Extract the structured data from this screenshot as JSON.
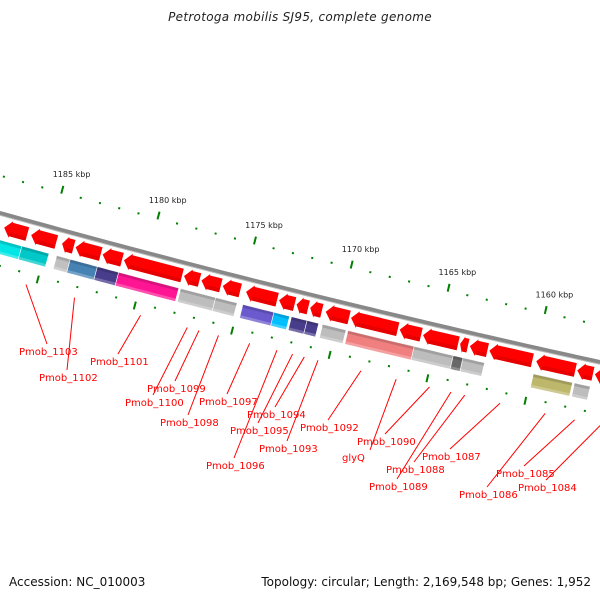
{
  "title": "Petrotoga mobilis SJ95, complete genome",
  "footer": {
    "accession": "Accession: NC_010003",
    "summary": "Topology: circular; Length: 2,169,548 bp; Genes: 1,952"
  },
  "colors": {
    "backbone": "#888888",
    "forward_gene": "#ff0000",
    "tick": "#008000",
    "label": "#ff0000",
    "kbp_text": "#222222"
  },
  "scale": {
    "unit": "kbp",
    "major_ticks_kbp": [
      1185,
      1180,
      1175,
      1170,
      1165,
      1160
    ],
    "minor_tick_step_kbp": 1
  },
  "genes_track": [
    {
      "start_kbp": 1187.3,
      "end_kbp": 1186.1,
      "color": "#ff0000"
    },
    {
      "start_kbp": 1185.9,
      "end_kbp": 1184.6,
      "color": "#ff0000"
    },
    {
      "start_kbp": 1184.3,
      "end_kbp": 1183.7,
      "color": "#ff0000"
    },
    {
      "start_kbp": 1183.6,
      "end_kbp": 1182.3,
      "color": "#ff0000"
    },
    {
      "start_kbp": 1182.2,
      "end_kbp": 1181.2,
      "color": "#ff0000"
    },
    {
      "start_kbp": 1181.1,
      "end_kbp": 1178.1,
      "color": "#ff0000"
    },
    {
      "start_kbp": 1178.0,
      "end_kbp": 1177.2,
      "color": "#ff0000"
    },
    {
      "start_kbp": 1177.1,
      "end_kbp": 1176.1,
      "color": "#ff0000"
    },
    {
      "start_kbp": 1176.0,
      "end_kbp": 1175.1,
      "color": "#ff0000"
    },
    {
      "start_kbp": 1174.8,
      "end_kbp": 1173.2,
      "color": "#ff0000"
    },
    {
      "start_kbp": 1173.1,
      "end_kbp": 1172.3,
      "color": "#ff0000"
    },
    {
      "start_kbp": 1172.2,
      "end_kbp": 1171.6,
      "color": "#ff0000"
    },
    {
      "start_kbp": 1171.5,
      "end_kbp": 1170.9,
      "color": "#ff0000"
    },
    {
      "start_kbp": 1170.7,
      "end_kbp": 1169.5,
      "color": "#ff0000"
    },
    {
      "start_kbp": 1169.4,
      "end_kbp": 1167.0,
      "color": "#ff0000"
    },
    {
      "start_kbp": 1166.9,
      "end_kbp": 1165.8,
      "color": "#ff0000"
    },
    {
      "start_kbp": 1165.7,
      "end_kbp": 1163.9,
      "color": "#ff0000"
    },
    {
      "start_kbp": 1163.8,
      "end_kbp": 1163.4,
      "color": "#ff0000"
    },
    {
      "start_kbp": 1163.3,
      "end_kbp": 1162.4,
      "color": "#ff0000"
    },
    {
      "start_kbp": 1162.3,
      "end_kbp": 1160.1,
      "color": "#ff0000"
    },
    {
      "start_kbp": 1159.9,
      "end_kbp": 1157.9,
      "color": "#ff0000"
    },
    {
      "start_kbp": 1157.8,
      "end_kbp": 1157.0,
      "color": "#ff0000"
    },
    {
      "start_kbp": 1156.9,
      "end_kbp": 1155.3,
      "color": "#ff0000"
    },
    {
      "start_kbp": 1155.2,
      "end_kbp": 1154.0,
      "color": "#ff0000"
    }
  ],
  "cog_track": [
    {
      "start_kbp": 1187.6,
      "end_kbp": 1186.2,
      "color": "#00e5e5"
    },
    {
      "start_kbp": 1186.2,
      "end_kbp": 1184.8,
      "color": "#00c8c8"
    },
    {
      "start_kbp": 1184.4,
      "end_kbp": 1183.7,
      "color": "#c0c0c0"
    },
    {
      "start_kbp": 1183.7,
      "end_kbp": 1182.3,
      "color": "#4682b4"
    },
    {
      "start_kbp": 1182.3,
      "end_kbp": 1181.2,
      "color": "#483d8b"
    },
    {
      "start_kbp": 1181.2,
      "end_kbp": 1178.1,
      "color": "#ff1493"
    },
    {
      "start_kbp": 1178.0,
      "end_kbp": 1176.2,
      "color": "#bdbdbd"
    },
    {
      "start_kbp": 1176.2,
      "end_kbp": 1175.1,
      "color": "#bdbdbd"
    },
    {
      "start_kbp": 1174.8,
      "end_kbp": 1173.2,
      "color": "#6a5acd"
    },
    {
      "start_kbp": 1173.2,
      "end_kbp": 1172.4,
      "color": "#00bfff"
    },
    {
      "start_kbp": 1172.3,
      "end_kbp": 1171.5,
      "color": "#483d8b"
    },
    {
      "start_kbp": 1171.5,
      "end_kbp": 1170.9,
      "color": "#483d8b"
    },
    {
      "start_kbp": 1170.7,
      "end_kbp": 1169.5,
      "color": "#bdbdbd"
    },
    {
      "start_kbp": 1169.4,
      "end_kbp": 1166.0,
      "color": "#f08080"
    },
    {
      "start_kbp": 1166.0,
      "end_kbp": 1164.0,
      "color": "#bdbdbd"
    },
    {
      "start_kbp": 1164.0,
      "end_kbp": 1163.5,
      "color": "#696969"
    },
    {
      "start_kbp": 1163.5,
      "end_kbp": 1162.4,
      "color": "#bdbdbd"
    },
    {
      "start_kbp": 1159.9,
      "end_kbp": 1157.9,
      "color": "#bdb76b"
    },
    {
      "start_kbp": 1157.8,
      "end_kbp": 1157.0,
      "color": "#bdbdbd"
    },
    {
      "start_kbp": 1154.8,
      "end_kbp": 1153.5,
      "color": "#ff1493"
    }
  ],
  "gene_labels": [
    {
      "text": "Pmob_1103",
      "gene_kbp": 1185.5,
      "label_at": [
        19,
        355
      ]
    },
    {
      "text": "Pmob_1102",
      "gene_kbp": 1183.0,
      "label_at": [
        39,
        381
      ]
    },
    {
      "text": "Pmob_1101",
      "gene_kbp": 1179.6,
      "label_at": [
        90,
        365
      ]
    },
    {
      "text": "Pmob_1099",
      "gene_kbp": 1176.6,
      "label_at": [
        147,
        392
      ]
    },
    {
      "text": "Pmob_1100",
      "gene_kbp": 1177.2,
      "label_at": [
        125,
        406
      ]
    },
    {
      "text": "Pmob_1098",
      "gene_kbp": 1175.6,
      "label_at": [
        160,
        426
      ]
    },
    {
      "text": "Pmob_1097",
      "gene_kbp": 1174.0,
      "label_at": [
        199,
        405
      ]
    },
    {
      "text": "Pmob_1094",
      "gene_kbp": 1171.2,
      "label_at": [
        247,
        418
      ]
    },
    {
      "text": "Pmob_1095",
      "gene_kbp": 1171.8,
      "label_at": [
        230,
        434
      ]
    },
    {
      "text": "Pmob_1096",
      "gene_kbp": 1172.6,
      "label_at": [
        206,
        469
      ]
    },
    {
      "text": "Pmob_1093",
      "gene_kbp": 1170.5,
      "label_at": [
        259,
        452
      ]
    },
    {
      "text": "Pmob_1092",
      "gene_kbp": 1168.3,
      "label_at": [
        300,
        431
      ]
    },
    {
      "text": "glyQ",
      "gene_kbp": 1166.5,
      "label_at": [
        342,
        461
      ]
    },
    {
      "text": "Pmob_1090",
      "gene_kbp": 1164.8,
      "label_at": [
        357,
        445
      ]
    },
    {
      "text": "Pmob_1088",
      "gene_kbp": 1163.0,
      "label_at": [
        386,
        473
      ]
    },
    {
      "text": "Pmob_1089",
      "gene_kbp": 1163.7,
      "label_at": [
        369,
        490
      ]
    },
    {
      "text": "Pmob_1087",
      "gene_kbp": 1161.2,
      "label_at": [
        422,
        460
      ]
    },
    {
      "text": "Pmob_1086",
      "gene_kbp": 1158.9,
      "label_at": [
        459,
        498
      ]
    },
    {
      "text": "Pmob_1085",
      "gene_kbp": 1157.4,
      "label_at": [
        496,
        477
      ]
    },
    {
      "text": "Pmob_1084",
      "gene_kbp": 1156.1,
      "label_at": [
        518,
        491
      ]
    }
  ]
}
